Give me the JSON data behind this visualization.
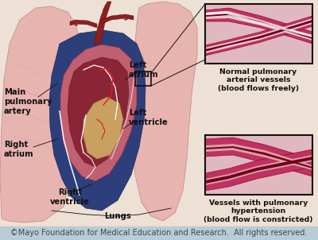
{
  "copyright_text": "©Mayo Foundation for Medical Education and Research.  All rights reserved.",
  "copyright_bg": "#b8ccd8",
  "copyright_text_color": "#444444",
  "copyright_fontsize": 7.0,
  "bg_color": "#ede0d4",
  "label_left_atrium": "Left\natrium",
  "label_left_ventricle": "Left\nventricle",
  "label_right_atrium": "Right\natrium",
  "label_right_ventricle": "Right\nventricle",
  "label_main_pulmonary": "Main\npulmonary\nartery",
  "label_lungs": "Lungs",
  "label_normal_vessels": "Normal pulmonary\narterial vessels\n(blood flows freely)",
  "label_hypertension_vessels": "Vessels with pulmonary\nhypertension\n(blood flow is constricted)",
  "box_border_color": "#111111",
  "label_fontsize": 7.2,
  "label_color": "#111111",
  "fig_width": 4.0,
  "fig_height": 3.02,
  "dpi": 100,
  "lung_color": "#e8b4b0",
  "lung_edge": "#c89090",
  "heart_blue": "#2d3f7a",
  "heart_red": "#7a2828",
  "heart_pink": "#c87878",
  "heart_tan": "#c8a060",
  "artery_dark": "#6b0a1a",
  "artery_red": "#b02040",
  "vessel_wall": "#c03060",
  "vessel_dark": "#800020",
  "vessel_lumen_normal": "#f0c8d0",
  "vessel_lumen_hyper": "#900030",
  "vessel_bg": "#d8a0b0",
  "vessel_tissue": "#e0b8c0"
}
